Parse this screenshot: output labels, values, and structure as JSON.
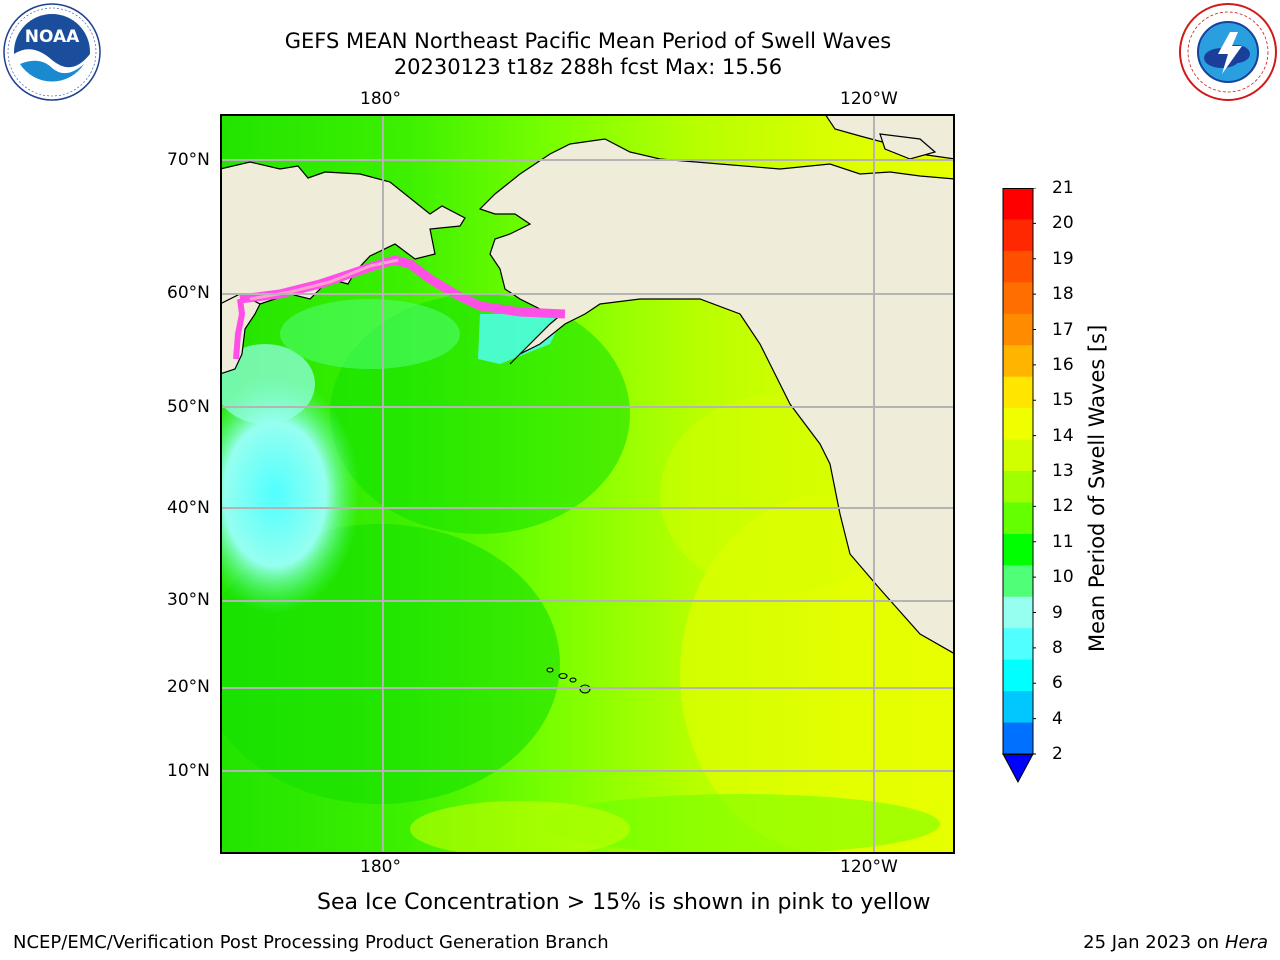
{
  "header": {
    "title_line1": "GEFS MEAN Northeast Pacific Mean Period of Swell Waves",
    "title_line2": "20230123 t18z 288h fcst   Max: 15.56"
  },
  "logos": {
    "left": {
      "name": "NOAA",
      "ring_text": "NATIONAL OCEANIC AND ATMOSPHERIC ADMINISTRATION · U.S. DEPARTMENT OF COMMERCE"
    },
    "right": {
      "name": "NATIONAL WEATHER SERVICE"
    }
  },
  "map": {
    "top_lon_labels": [
      "180°",
      "120°W"
    ],
    "bottom_lon_labels": [
      "180°",
      "120°W"
    ],
    "lat_labels": [
      "70°N",
      "60°N",
      "50°N",
      "40°N",
      "30°N",
      "20°N",
      "10°N"
    ],
    "land_color": "#efecda",
    "coast_color": "#000000",
    "grid_color": "#b4b4b4"
  },
  "colorbar": {
    "title": "Mean Period of Swell Waves [s]",
    "ticks": [
      "21",
      "20",
      "19",
      "18",
      "17",
      "16",
      "15",
      "14",
      "13",
      "12",
      "11",
      "10",
      "9",
      "8",
      "6",
      "4",
      "2"
    ],
    "colors_top_to_bottom": [
      "#ff0000",
      "#ff2800",
      "#ff5000",
      "#ff6e00",
      "#ff8c00",
      "#ffb400",
      "#ffe600",
      "#f0ff00",
      "#d2ff00",
      "#a0ff00",
      "#64ff00",
      "#00ff00",
      "#50ff78",
      "#96fff0",
      "#50ffff",
      "#00ffff",
      "#00c8ff",
      "#0070ff"
    ],
    "extend_color": "#0000ff"
  },
  "note": "Sea Ice Concentration > 15% is shown in pink to yellow",
  "footer": {
    "left": "NCEP/EMC/Verification Post Processing Product Generation Branch",
    "right_date": "25 Jan 2023 on ",
    "right_machine": "Hera"
  }
}
